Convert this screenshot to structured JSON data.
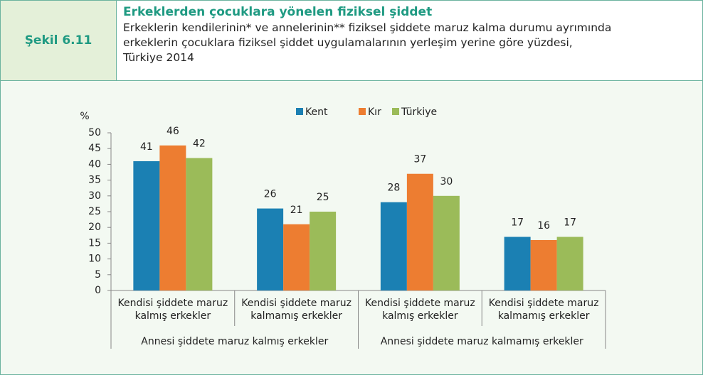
{
  "figure_label": "Şekil 6.11",
  "chart_data": {
    "type": "bar",
    "title": "Erkeklerden çocuklara yönelen fiziksel şiddet",
    "subtitle": [
      "Erkeklerin kendilerinin* ve annelerinin** fiziksel şiddete maruz kalma durumu ayrımında",
      "erkeklerin çocuklara fiziksel şiddet uygulamalarının yerleşim yerine göre yüzdesi,",
      "Türkiye 2014"
    ],
    "y_label": "%",
    "categories": [
      [
        "Kendisi şiddete maruz",
        "kalmış erkekler"
      ],
      [
        "Kendisi şiddete maruz",
        "kalmamış erkekler"
      ],
      [
        "Kendisi şiddete maruz",
        "kalmış erkekler"
      ],
      [
        "Kendisi şiddete maruz",
        "kalmamış erkekler"
      ]
    ],
    "groups": [
      "Annesi şiddete maruz kalmış erkekler",
      "Annesi şiddete maruz kalmamış erkekler"
    ],
    "series": [
      {
        "name": "Kent",
        "color": "#1b80b3",
        "values": [
          41,
          26,
          28,
          17
        ]
      },
      {
        "name": "Kır",
        "color": "#ed7d31",
        "values": [
          46,
          21,
          37,
          16
        ]
      },
      {
        "name": "Türkiye",
        "color": "#9bbb59",
        "values": [
          42,
          25,
          30,
          17
        ]
      }
    ],
    "ylim": [
      0,
      50
    ],
    "yticks": [
      0,
      5,
      10,
      15,
      20,
      25,
      30,
      35,
      40,
      45,
      50
    ],
    "legend": "top"
  }
}
